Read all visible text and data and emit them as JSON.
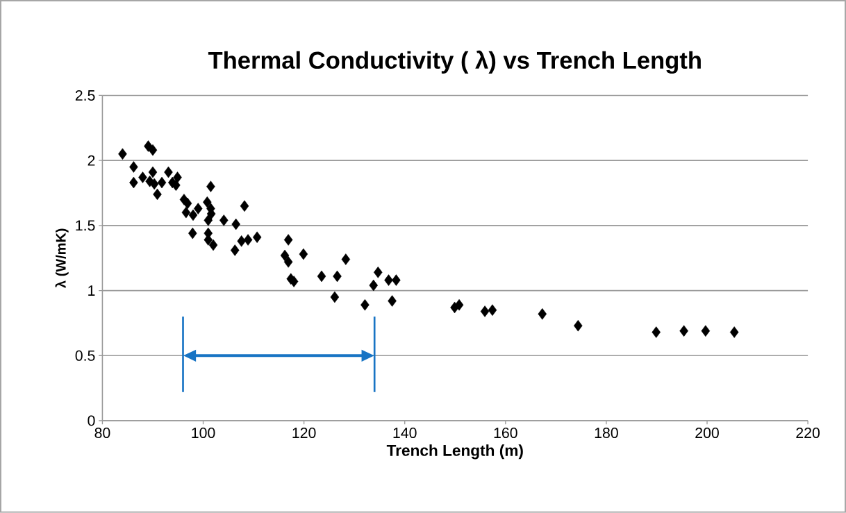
{
  "chart_data": {
    "type": "scatter",
    "title": "Thermal Conductivity ( λ) vs Trench Length",
    "xlabel": "Trench Length (m)",
    "ylabel": "λ (W/mK)",
    "x": [
      84.0,
      89.1,
      90.0,
      86.2,
      86.2,
      88.0,
      89.4,
      90.0,
      90.3,
      90.9,
      91.8,
      93.1,
      93.9,
      94.9,
      94.6,
      96.2,
      96.9,
      96.6,
      98.0,
      99.0,
      97.9,
      100.8,
      101.5,
      101.0,
      101.0,
      101.0,
      102.0,
      101.5,
      101.6,
      104.1,
      106.5,
      106.3,
      108.2,
      107.6,
      108.9,
      110.7,
      116.9,
      116.2,
      116.9,
      119.9,
      117.4,
      118.0,
      123.5,
      126.6,
      128.3,
      126.1,
      132.1,
      134.7,
      133.8,
      136.8,
      138.3,
      137.5,
      149.9,
      150.8,
      155.9,
      157.4,
      167.3,
      174.4,
      189.9,
      195.4,
      199.7,
      205.4
    ],
    "values": [
      2.05,
      2.11,
      2.08,
      1.95,
      1.83,
      1.87,
      1.84,
      1.91,
      1.82,
      1.74,
      1.83,
      1.91,
      1.83,
      1.87,
      1.81,
      1.7,
      1.67,
      1.6,
      1.58,
      1.63,
      1.44,
      1.68,
      1.63,
      1.54,
      1.44,
      1.39,
      1.35,
      1.8,
      1.59,
      1.54,
      1.51,
      1.31,
      1.65,
      1.38,
      1.39,
      1.41,
      1.39,
      1.27,
      1.22,
      1.28,
      1.09,
      1.07,
      1.11,
      1.11,
      1.24,
      0.95,
      0.89,
      1.14,
      1.04,
      1.08,
      1.08,
      0.92,
      0.87,
      0.89,
      0.84,
      0.85,
      0.82,
      0.73,
      0.68,
      0.69,
      0.69,
      0.68
    ],
    "color": "#000000",
    "marker": "diamond",
    "grid": "y",
    "xlim": [
      80,
      220
    ],
    "xticks": [
      80,
      100,
      120,
      140,
      160,
      180,
      200,
      220
    ],
    "ylim": [
      0,
      2.5
    ],
    "yticks": [
      0,
      0.5,
      1,
      1.5,
      2,
      2.5
    ],
    "ref_lines": [
      {
        "axis": "x",
        "value": 96,
        "color": "#1874c4"
      },
      {
        "axis": "x",
        "value": 134,
        "color": "#1874c4"
      }
    ]
  }
}
